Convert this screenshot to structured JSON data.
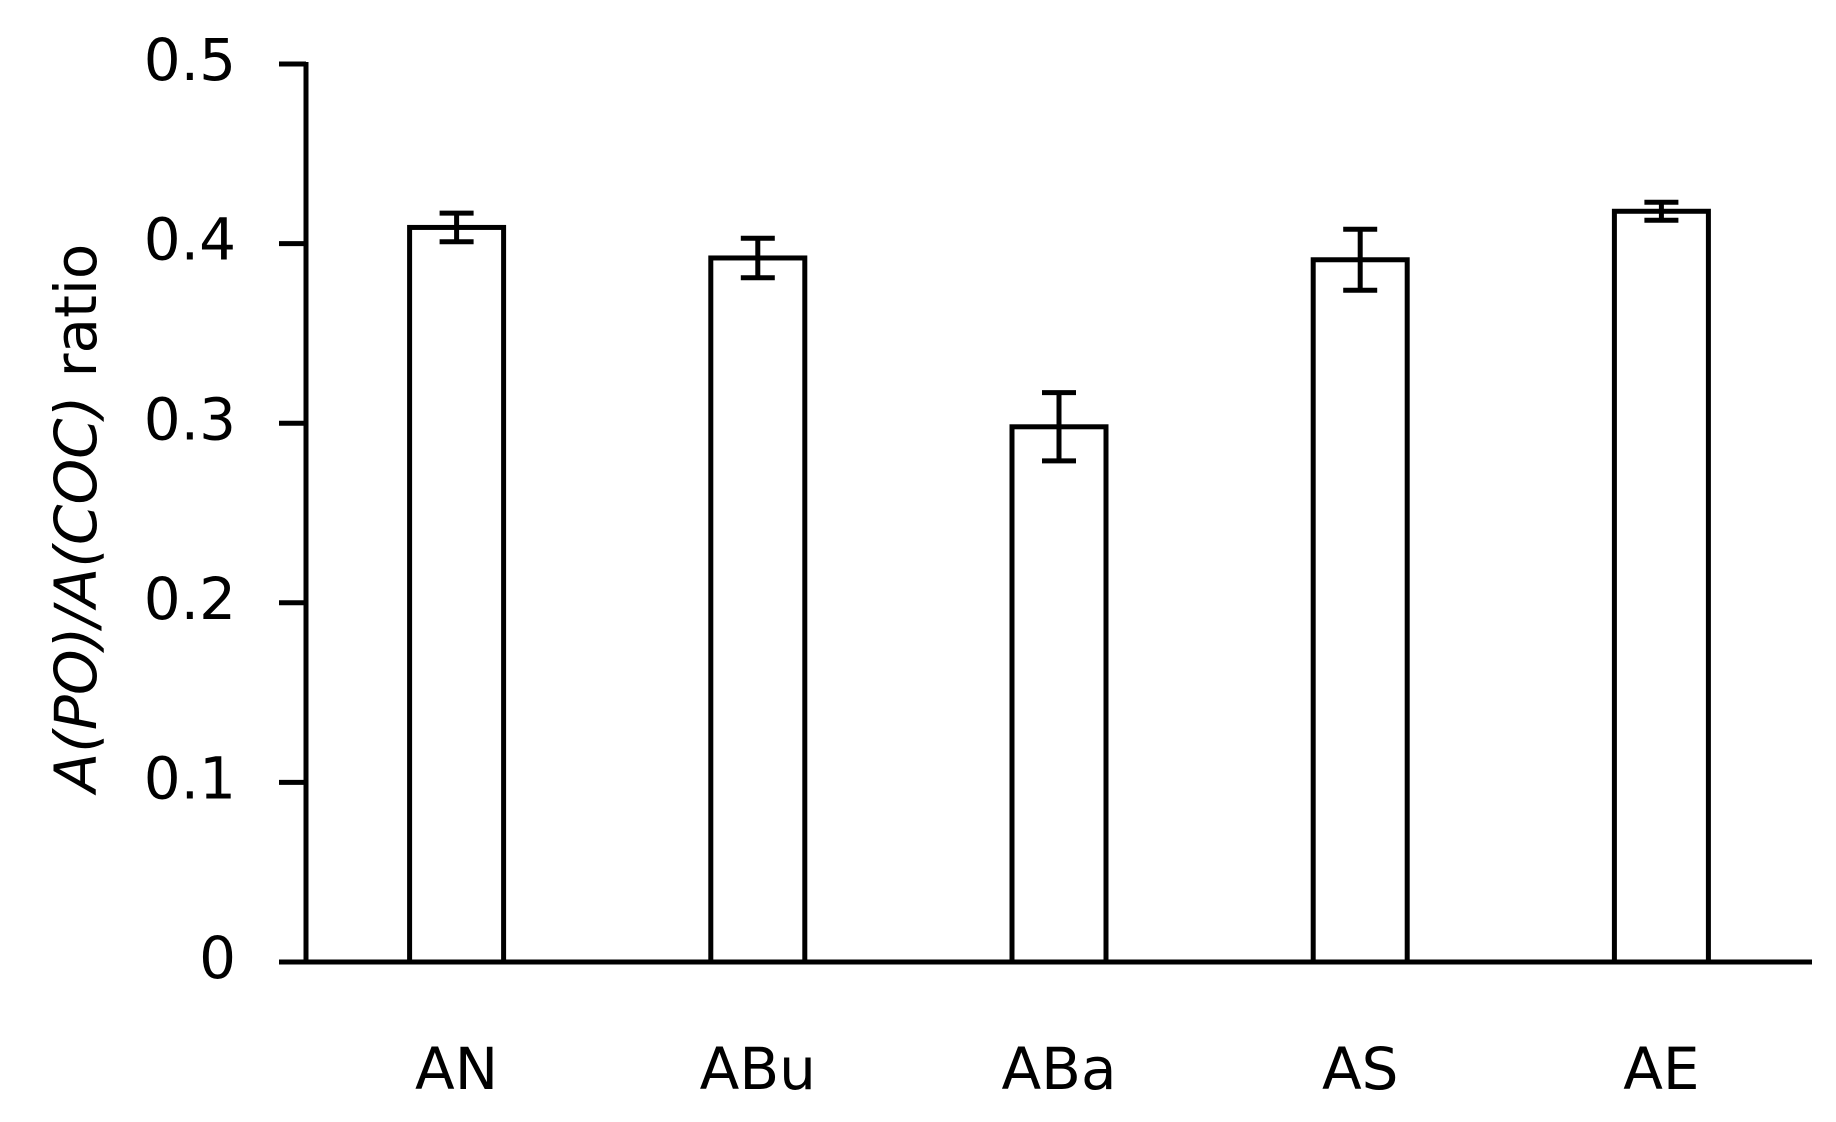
{
  "chart_data": {
    "type": "bar",
    "y_label": [
      "A(PO)/A(COC)",
      "ratio"
    ],
    "categories": [
      "AN",
      "ABu",
      "ABa",
      "AS",
      "AE"
    ],
    "values": [
      0.409,
      0.392,
      0.298,
      0.391,
      0.418
    ],
    "errors": [
      0.008,
      0.011,
      0.019,
      0.017,
      0.005
    ],
    "color": "#ffffff",
    "ylim": [
      0,
      0.5
    ],
    "yticks": [
      0,
      0.1,
      0.2,
      0.3,
      0.4,
      0.5
    ],
    "grid": false
  }
}
